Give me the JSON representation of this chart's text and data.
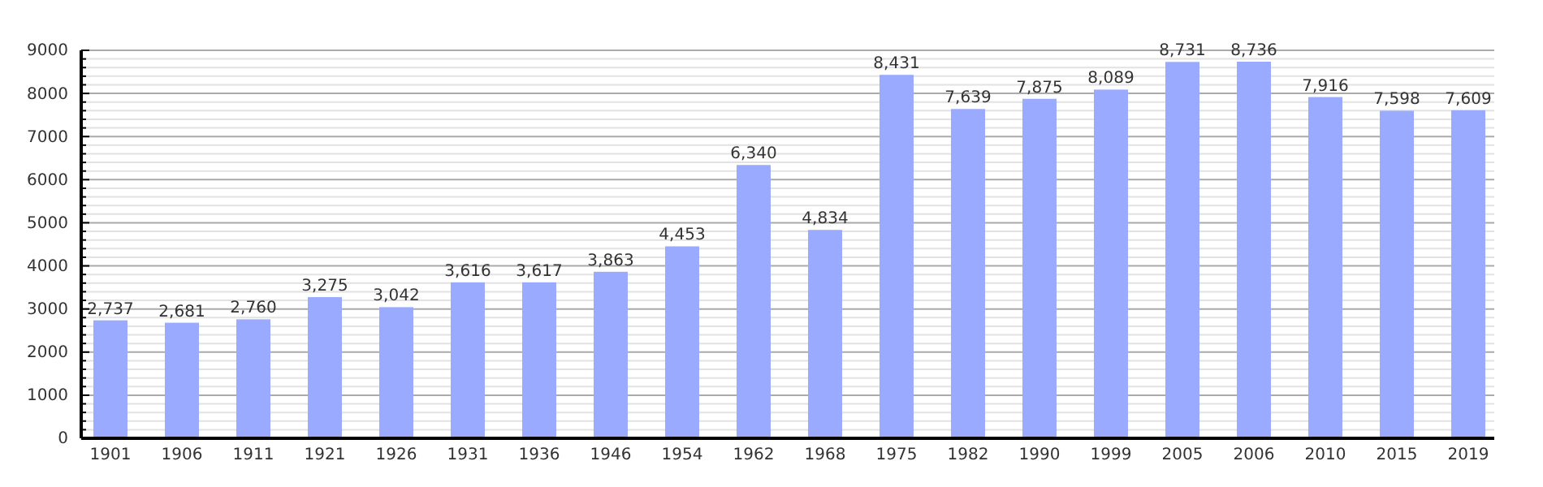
{
  "chart_data": {
    "type": "bar",
    "categories": [
      "1901",
      "1906",
      "1911",
      "1921",
      "1926",
      "1931",
      "1936",
      "1946",
      "1954",
      "1962",
      "1968",
      "1975",
      "1982",
      "1990",
      "1999",
      "2005",
      "2006",
      "2010",
      "2015",
      "2019"
    ],
    "values": [
      2737,
      2681,
      2760,
      3275,
      3042,
      3616,
      3617,
      3863,
      4453,
      6340,
      4834,
      8431,
      7639,
      7875,
      8089,
      8731,
      8736,
      7916,
      7598,
      7609
    ],
    "color": "#99aaff",
    "ylim": [
      0,
      9000
    ],
    "yticks": [
      0,
      {
        "value": 200,
        "label": null
      },
      {
        "value": 400,
        "label": null
      },
      {
        "value": 600,
        "label": null
      },
      {
        "value": 800,
        "label": null
      },
      1000,
      {
        "value": 1200,
        "label": null
      },
      {
        "value": 1400,
        "label": null
      },
      {
        "value": 1600,
        "label": null
      },
      {
        "value": 1800,
        "label": null
      },
      2000,
      {
        "value": 2200,
        "label": null
      },
      {
        "value": 2400,
        "label": null
      },
      {
        "value": 2600,
        "label": null
      },
      {
        "value": 2800,
        "label": null
      },
      3000,
      {
        "value": 3200,
        "label": null
      },
      {
        "value": 3400,
        "label": null
      },
      {
        "value": 3600,
        "label": null
      },
      {
        "value": 3800,
        "label": null
      },
      4000,
      {
        "value": 4200,
        "label": null
      },
      {
        "value": 4400,
        "label": null
      },
      {
        "value": 4600,
        "label": null
      },
      {
        "value": 4800,
        "label": null
      },
      5000,
      {
        "value": 5200,
        "label": null
      },
      {
        "value": 5400,
        "label": null
      },
      {
        "value": 5600,
        "label": null
      },
      {
        "value": 5800,
        "label": null
      },
      6000,
      {
        "value": 6200,
        "label": null
      },
      {
        "value": 6400,
        "label": null
      },
      {
        "value": 6600,
        "label": null
      },
      {
        "value": 6800,
        "label": null
      },
      7000,
      {
        "value": 7200,
        "label": null
      },
      {
        "value": 7400,
        "label": null
      },
      {
        "value": 7600,
        "label": null
      },
      {
        "value": 7800,
        "label": null
      },
      8000,
      {
        "value": 8200,
        "label": null
      },
      {
        "value": 8400,
        "label": null
      },
      {
        "value": 8600,
        "label": null
      },
      {
        "value": 8800,
        "label": null
      },
      9000
    ],
    "value_labels": [
      "2,737",
      "2,681",
      "2,760",
      "3,275",
      "3,042",
      "3,616",
      "3,617",
      "3,863",
      "4,453",
      "6,340",
      "4,834",
      "8,431",
      "7,639",
      "7,875",
      "8,089",
      "8,731",
      "8,736",
      "7,916",
      "7,598",
      "7,609"
    ],
    "grid": "y"
  }
}
